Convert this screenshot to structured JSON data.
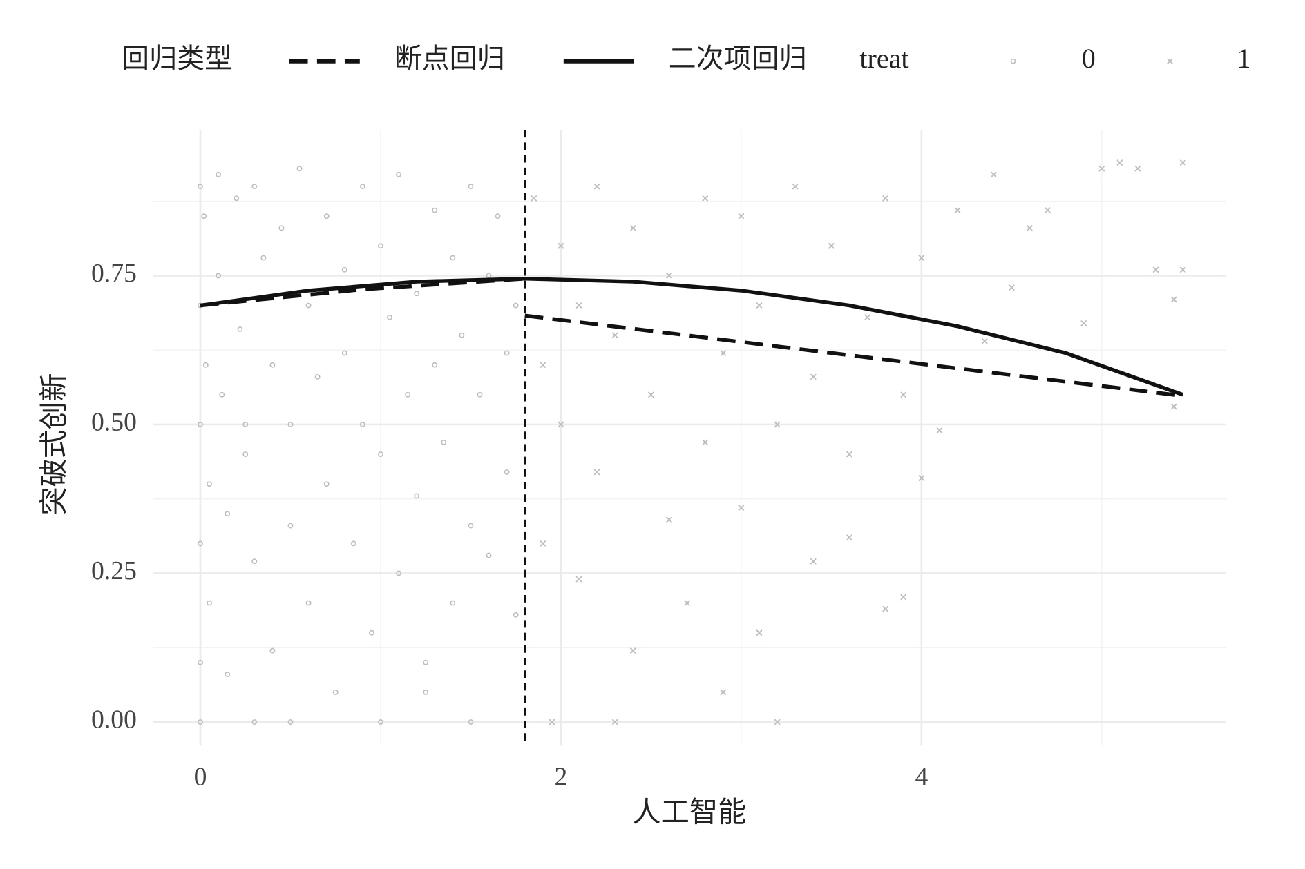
{
  "chart_data": {
    "type": "scatter",
    "x_label": "人工智能",
    "y_label": "突破式创新",
    "xlim": [
      -0.26,
      5.69
    ],
    "ylim": [
      -0.04,
      0.995
    ],
    "xticks": [
      0,
      2,
      4
    ],
    "yticks": [
      {
        "value": 0,
        "label": "0.00"
      },
      0.25,
      {
        "value": 0.5,
        "label": "0.50"
      },
      0.75
    ],
    "x_minor_grid": [
      1,
      3,
      5
    ],
    "y_minor_grid": [
      0.125,
      0.375,
      0.625,
      0.875
    ],
    "grid": true,
    "legend_position": "top",
    "line_legend_title": "回归类型",
    "point_legend_title": "treat",
    "cutoff_x": 1.8,
    "point_color": "#bdbdbd",
    "line_color": "#111111",
    "series": [
      {
        "name": "0",
        "shape": "circle",
        "x": [
          0,
          0,
          0,
          0,
          0,
          0,
          0.02,
          0.03,
          0.05,
          0.05,
          0.1,
          0.1,
          0.12,
          0.15,
          0.15,
          0.2,
          0.22,
          0.25,
          0.25,
          0.3,
          0.3,
          0.35,
          0.4,
          0.4,
          0.45,
          0.5,
          0.5,
          0.55,
          0.6,
          0.6,
          0.65,
          0.7,
          0.7,
          0.75,
          0.8,
          0.8,
          0.85,
          0.9,
          0.9,
          0.95,
          1.0,
          1.0,
          1.05,
          1.1,
          1.1,
          1.15,
          1.2,
          1.2,
          1.25,
          1.3,
          1.3,
          1.35,
          1.4,
          1.4,
          1.45,
          1.5,
          1.5,
          1.55,
          1.6,
          1.6,
          1.65,
          1.7,
          1.7,
          1.75,
          1.75,
          0.5,
          1.0,
          1.5,
          0.3,
          1.25
        ],
        "values": [
          0.9,
          0.7,
          0.5,
          0.3,
          0.1,
          0,
          0.85,
          0.6,
          0.4,
          0.2,
          0.92,
          0.75,
          0.55,
          0.35,
          0.08,
          0.88,
          0.66,
          0.45,
          0.5,
          0.27,
          0.9,
          0.78,
          0.6,
          0.12,
          0.83,
          0.5,
          0.33,
          0.93,
          0.7,
          0.2,
          0.58,
          0.85,
          0.4,
          0.05,
          0.76,
          0.62,
          0.3,
          0.9,
          0.5,
          0.15,
          0.8,
          0.45,
          0.68,
          0.25,
          0.92,
          0.55,
          0.72,
          0.38,
          0.1,
          0.86,
          0.6,
          0.47,
          0.78,
          0.2,
          0.65,
          0.9,
          0.33,
          0.55,
          0.75,
          0.28,
          0.85,
          0.62,
          0.42,
          0.7,
          0.18,
          0,
          0,
          0,
          0,
          0.05
        ]
      },
      {
        "name": "1",
        "shape": "cross",
        "x": [
          1.85,
          1.9,
          1.9,
          1.95,
          2.0,
          2.0,
          2.1,
          2.1,
          2.2,
          2.2,
          2.3,
          2.3,
          2.4,
          2.4,
          2.5,
          2.6,
          2.6,
          2.7,
          2.8,
          2.8,
          2.9,
          2.9,
          3.0,
          3.0,
          3.1,
          3.1,
          3.2,
          3.2,
          3.3,
          3.4,
          3.4,
          3.5,
          3.6,
          3.6,
          3.7,
          3.8,
          3.8,
          3.9,
          4.0,
          4.0,
          4.1,
          4.2,
          4.4,
          4.5,
          4.6,
          4.7,
          4.9,
          5.0,
          5.1,
          5.2,
          5.3,
          5.4,
          5.4,
          5.45,
          5.45,
          3.9,
          4.35
        ],
        "values": [
          0.88,
          0.6,
          0.3,
          0,
          0.8,
          0.5,
          0.7,
          0.24,
          0.9,
          0.42,
          0.65,
          0,
          0.83,
          0.12,
          0.55,
          0.75,
          0.34,
          0.2,
          0.88,
          0.47,
          0.62,
          0.05,
          0.85,
          0.36,
          0.15,
          0.7,
          0.5,
          0,
          0.9,
          0.58,
          0.27,
          0.8,
          0.45,
          0.31,
          0.68,
          0.88,
          0.19,
          0.55,
          0.78,
          0.41,
          0.49,
          0.86,
          0.92,
          0.73,
          0.83,
          0.86,
          0.67,
          0.93,
          0.94,
          0.93,
          0.76,
          0.71,
          0.53,
          0.76,
          0.94,
          0.21,
          0.64
        ]
      }
    ],
    "lines": [
      {
        "name": "断点回归",
        "dash": true,
        "x": [
          0,
          0.9,
          1.8,
          1.8,
          1.8,
          5.45
        ],
        "values": [
          0.7,
          0.727,
          0.745,
          null,
          0.683,
          0.548
        ]
      },
      {
        "name": "二次项回归",
        "dash": false,
        "x": [
          0,
          0.6,
          1.2,
          1.8,
          2.4,
          3.0,
          3.6,
          4.2,
          4.8,
          5.45
        ],
        "values": [
          0.7,
          0.725,
          0.74,
          0.745,
          0.74,
          0.725,
          0.7,
          0.665,
          0.62,
          0.55
        ]
      }
    ]
  }
}
